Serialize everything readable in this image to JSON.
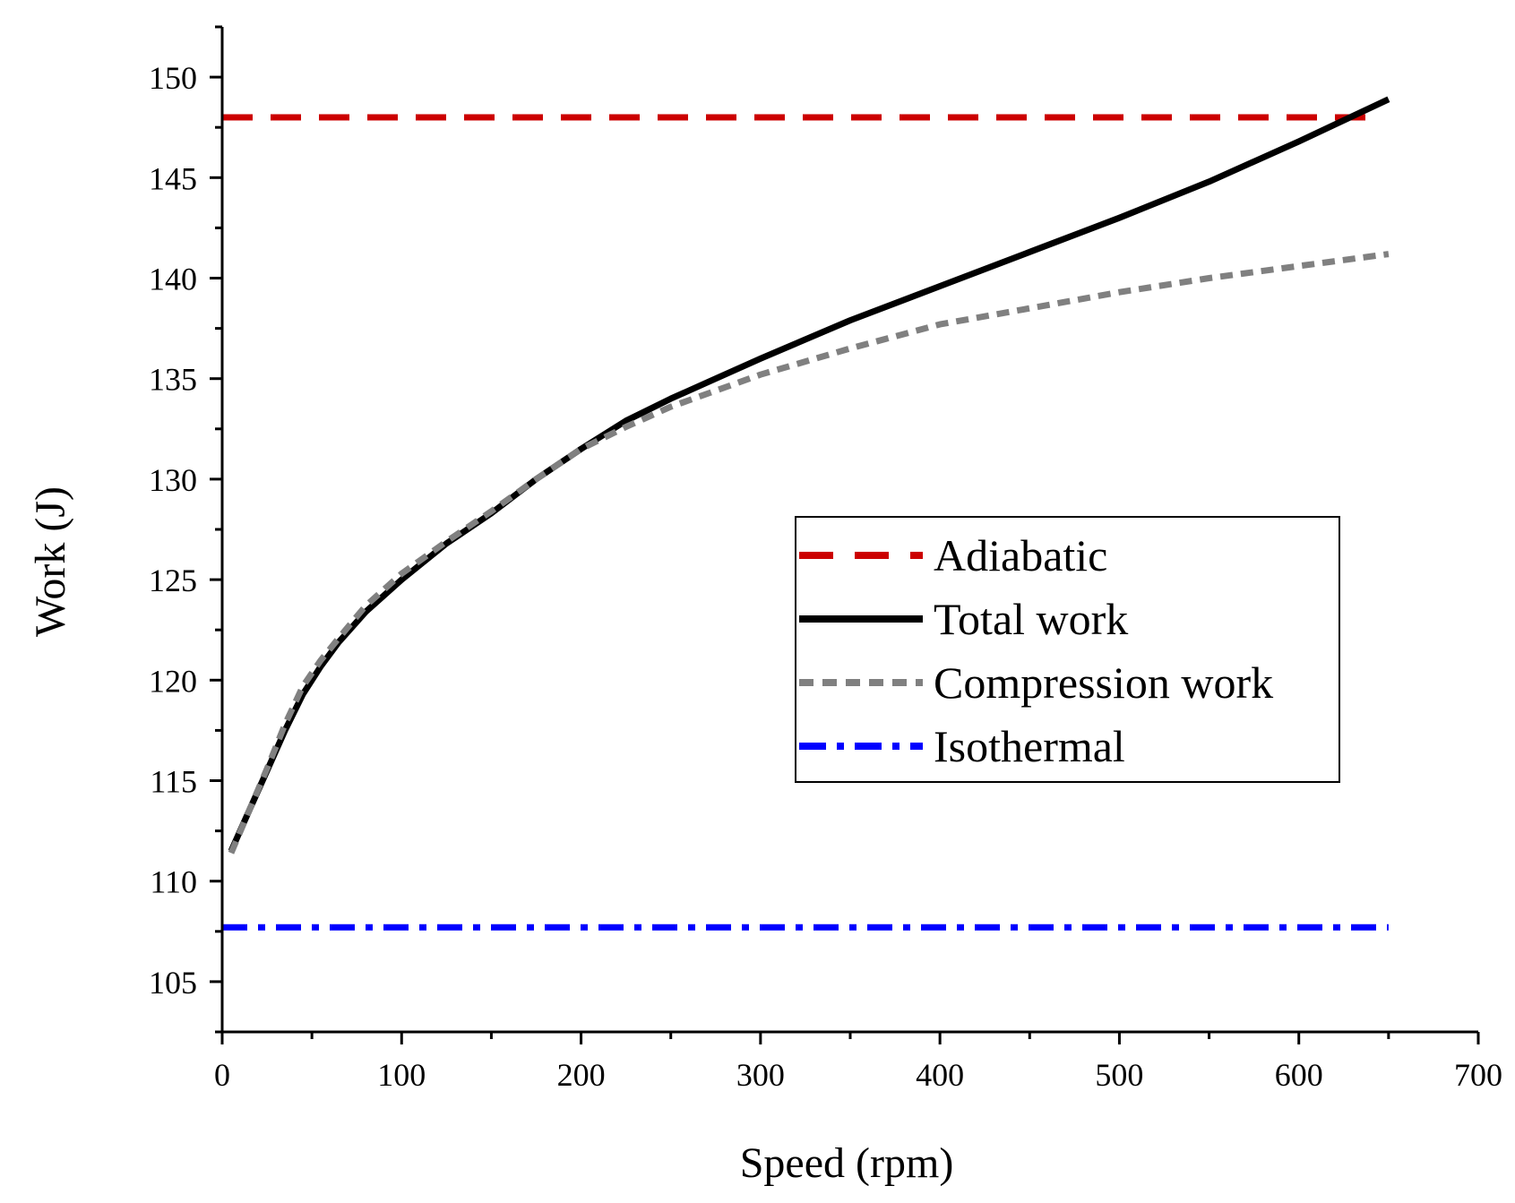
{
  "chart_data": {
    "type": "line",
    "title": "",
    "xlabel": "Speed (rpm)",
    "ylabel": "Work (J)",
    "xlim": [
      0,
      700
    ],
    "ylim": [
      102.5,
      152.5
    ],
    "xticks": [
      0,
      100,
      200,
      300,
      400,
      500,
      600,
      700
    ],
    "yticks": [
      105,
      110,
      115,
      120,
      125,
      130,
      135,
      140,
      145,
      150
    ],
    "grid": false,
    "legend_position": "center-right",
    "series": [
      {
        "name": "Adiabatic",
        "color": "#cc0000",
        "style": "dashed",
        "x": [
          0,
          645
        ],
        "y": [
          148.0,
          148.0
        ]
      },
      {
        "name": "Total work",
        "color": "#000000",
        "style": "solid",
        "x": [
          5,
          15,
          25,
          35,
          45,
          55,
          65,
          80,
          100,
          125,
          150,
          175,
          200,
          225,
          250,
          275,
          300,
          350,
          400,
          450,
          500,
          550,
          600,
          650
        ],
        "y": [
          111.5,
          113.5,
          115.5,
          117.5,
          119.3,
          120.7,
          121.9,
          123.4,
          125.0,
          126.8,
          128.3,
          130.0,
          131.5,
          132.9,
          134.0,
          135.0,
          136.0,
          137.9,
          139.6,
          141.3,
          143.0,
          144.8,
          146.8,
          148.9
        ]
      },
      {
        "name": "Compression work",
        "color": "#808080",
        "style": "dotted",
        "x": [
          5,
          15,
          25,
          35,
          45,
          55,
          65,
          80,
          100,
          125,
          150,
          175,
          200,
          225,
          250,
          275,
          300,
          350,
          400,
          450,
          500,
          550,
          600,
          650
        ],
        "y": [
          111.4,
          113.5,
          115.6,
          117.8,
          119.7,
          121.0,
          122.1,
          123.7,
          125.3,
          126.9,
          128.4,
          130.0,
          131.5,
          132.6,
          133.6,
          134.4,
          135.2,
          136.5,
          137.7,
          138.5,
          139.3,
          140.0,
          140.6,
          141.2
        ]
      },
      {
        "name": "Isothermal",
        "color": "#0000ff",
        "style": "dashdot",
        "x": [
          0,
          650
        ],
        "y": [
          107.7,
          107.7
        ]
      }
    ]
  }
}
